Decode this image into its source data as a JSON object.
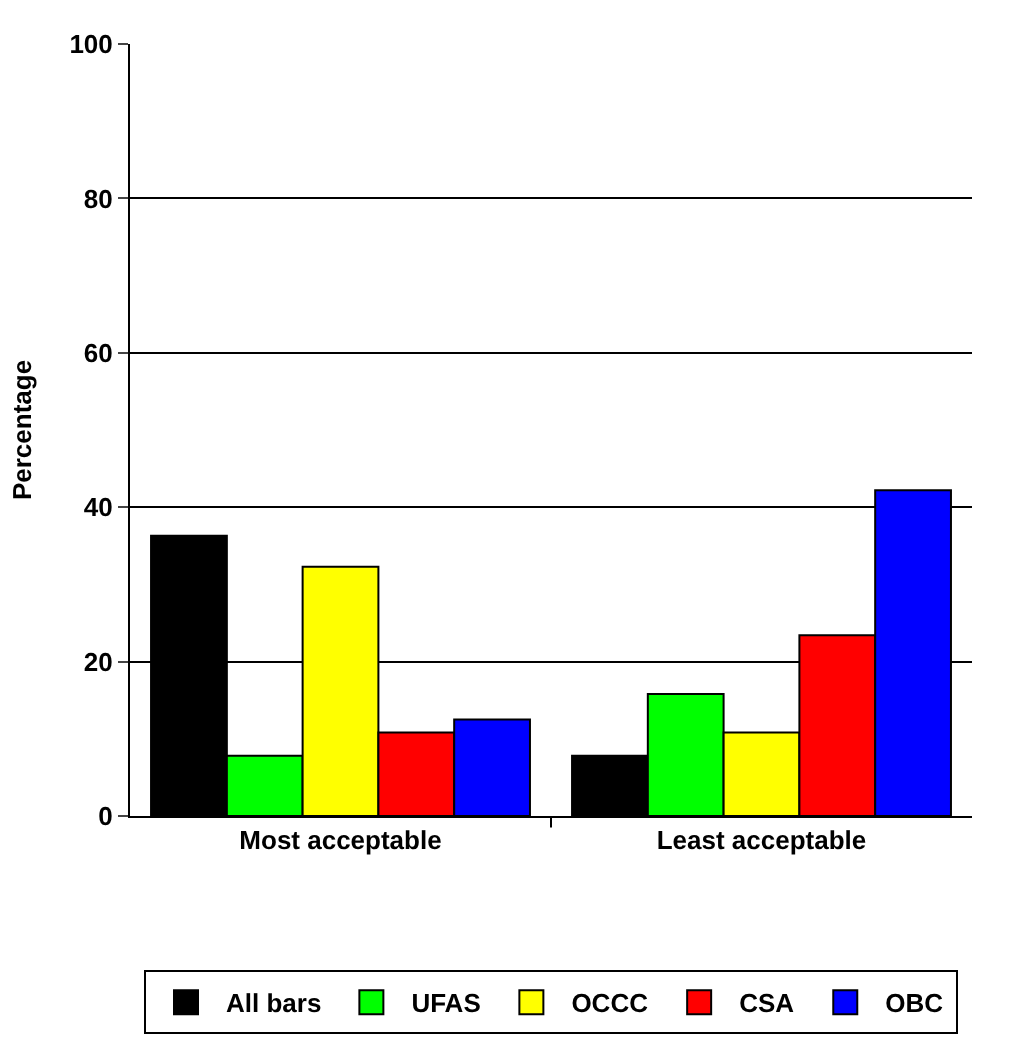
{
  "chart_data": {
    "type": "bar",
    "ylabel": "Percentage",
    "categories": [
      "Most acceptable",
      "Least acceptable"
    ],
    "series": [
      {
        "name": "All bars",
        "color": "#000000",
        "values": [
          36.3,
          7.8
        ]
      },
      {
        "name": "UFAS",
        "color": "#00ff00",
        "values": [
          7.8,
          15.8
        ]
      },
      {
        "name": "OCCC",
        "color": "#ffff00",
        "values": [
          32.3,
          10.8
        ]
      },
      {
        "name": "CSA",
        "color": "#ff0000",
        "values": [
          10.8,
          23.4
        ]
      },
      {
        "name": "OBC",
        "color": "#0000ff",
        "values": [
          12.5,
          42.2
        ]
      }
    ],
    "ylim": [
      0,
      100
    ],
    "yticks": [
      0,
      20,
      40,
      60,
      80,
      100
    ],
    "grid": "y",
    "legend": "bottom"
  }
}
